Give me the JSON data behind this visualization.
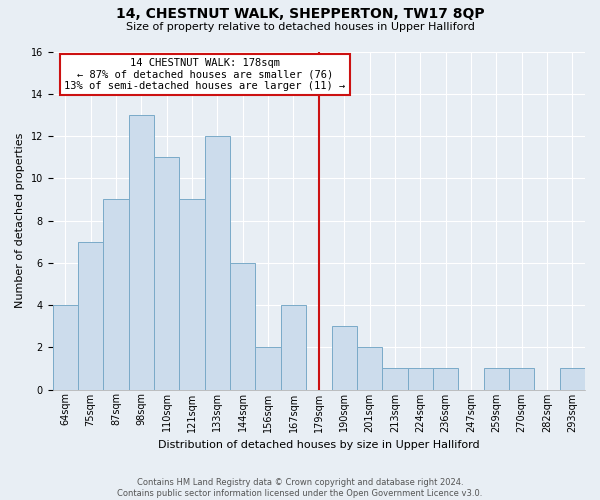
{
  "title": "14, CHESTNUT WALK, SHEPPERTON, TW17 8QP",
  "subtitle": "Size of property relative to detached houses in Upper Halliford",
  "xlabel": "Distribution of detached houses by size in Upper Halliford",
  "ylabel": "Number of detached properties",
  "bin_labels": [
    "64sqm",
    "75sqm",
    "87sqm",
    "98sqm",
    "110sqm",
    "121sqm",
    "133sqm",
    "144sqm",
    "156sqm",
    "167sqm",
    "179sqm",
    "190sqm",
    "201sqm",
    "213sqm",
    "224sqm",
    "236sqm",
    "247sqm",
    "259sqm",
    "270sqm",
    "282sqm",
    "293sqm"
  ],
  "bar_heights": [
    4,
    7,
    9,
    13,
    11,
    9,
    12,
    6,
    2,
    4,
    0,
    3,
    2,
    1,
    1,
    1,
    0,
    1,
    1,
    0,
    1
  ],
  "bar_color": "#ccdcec",
  "bar_edge_color": "#7aaac8",
  "vline_x_index": 10,
  "vline_color": "#cc1111",
  "annotation_title": "14 CHESTNUT WALK: 178sqm",
  "annotation_line1": "← 87% of detached houses are smaller (76)",
  "annotation_line2": "13% of semi-detached houses are larger (11) →",
  "annotation_box_facecolor": "#ffffff",
  "annotation_box_edgecolor": "#cc1111",
  "ylim": [
    0,
    16
  ],
  "yticks": [
    0,
    2,
    4,
    6,
    8,
    10,
    12,
    14,
    16
  ],
  "footer_line1": "Contains HM Land Registry data © Crown copyright and database right 2024.",
  "footer_line2": "Contains public sector information licensed under the Open Government Licence v3.0.",
  "background_color": "#e8eef4",
  "grid_color": "#ffffff",
  "title_fontsize": 10,
  "subtitle_fontsize": 8,
  "ylabel_fontsize": 8,
  "xlabel_fontsize": 8,
  "tick_fontsize": 7,
  "annotation_fontsize": 7.5,
  "footer_fontsize": 6
}
